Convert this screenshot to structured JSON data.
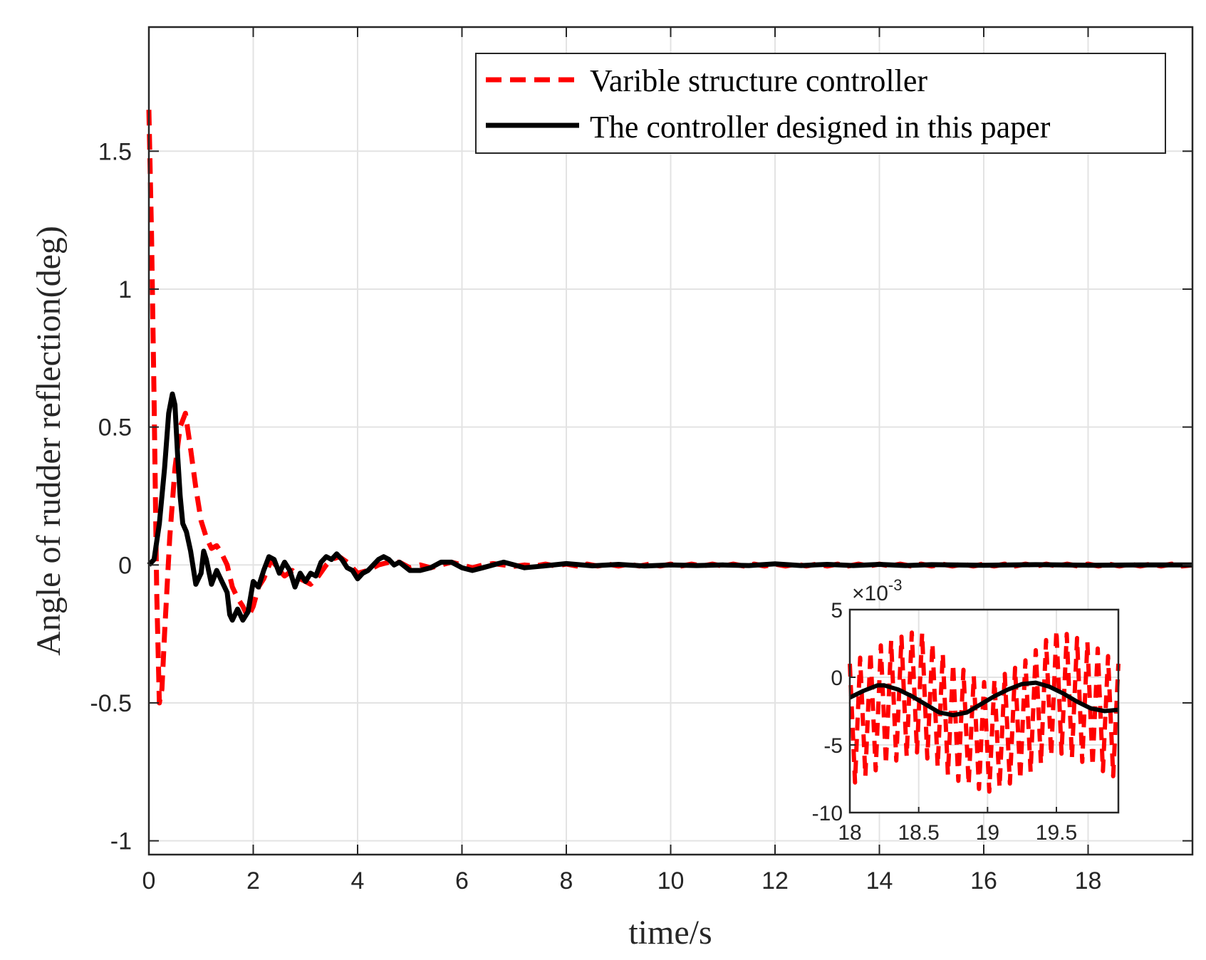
{
  "chart_data": [
    {
      "id": "main",
      "type": "line",
      "title": "",
      "xlabel": "time/s",
      "ylabel": "Angle of rudder reflection(deg)",
      "xlim": [
        0,
        20
      ],
      "ylim": [
        -1.05,
        1.95
      ],
      "x_ticks": [
        0,
        2,
        4,
        6,
        8,
        10,
        12,
        14,
        16,
        18
      ],
      "x_tick_labels": [
        "0",
        "2",
        "4",
        "6",
        "8",
        "10",
        "12",
        "14",
        "16",
        "18"
      ],
      "y_ticks": [
        -1,
        -0.5,
        0,
        0.5,
        1,
        1.5
      ],
      "y_tick_labels": [
        "-1",
        "-0.5",
        "0",
        "0.5",
        "1",
        "1.5"
      ],
      "grid": true,
      "legend_position": "top-right",
      "series": [
        {
          "name": "Varible structure controller",
          "color": "#ff0000",
          "style": "dashed",
          "points": [
            [
              0,
              1.65
            ],
            [
              0.05,
              1.2
            ],
            [
              0.1,
              0.6
            ],
            [
              0.15,
              -0.1
            ],
            [
              0.2,
              -0.5
            ],
            [
              0.25,
              -0.45
            ],
            [
              0.3,
              -0.25
            ],
            [
              0.4,
              0.1
            ],
            [
              0.5,
              0.35
            ],
            [
              0.6,
              0.5
            ],
            [
              0.7,
              0.55
            ],
            [
              0.8,
              0.42
            ],
            [
              0.9,
              0.28
            ],
            [
              1.0,
              0.16
            ],
            [
              1.1,
              0.1
            ],
            [
              1.2,
              0.06
            ],
            [
              1.3,
              0.07
            ],
            [
              1.4,
              0.04
            ],
            [
              1.5,
              0.0
            ],
            [
              1.6,
              -0.08
            ],
            [
              1.7,
              -0.12
            ],
            [
              1.8,
              -0.15
            ],
            [
              1.9,
              -0.19
            ],
            [
              2.0,
              -0.15
            ],
            [
              2.1,
              -0.08
            ],
            [
              2.2,
              -0.05
            ],
            [
              2.35,
              0.02
            ],
            [
              2.5,
              -0.02
            ],
            [
              2.6,
              -0.04
            ],
            [
              2.75,
              -0.02
            ],
            [
              2.9,
              -0.05
            ],
            [
              3.0,
              -0.06
            ],
            [
              3.1,
              -0.07
            ],
            [
              3.25,
              -0.04
            ],
            [
              3.4,
              0.0
            ],
            [
              3.5,
              0.02
            ],
            [
              3.65,
              0.03
            ],
            [
              3.8,
              0.01
            ],
            [
              4.0,
              -0.03
            ],
            [
              4.2,
              -0.02
            ],
            [
              4.4,
              0.0
            ],
            [
              4.6,
              0.01
            ],
            [
              4.8,
              0.01
            ],
            [
              5.0,
              -0.01
            ],
            [
              5.2,
              0.0
            ],
            [
              5.4,
              -0.01
            ],
            [
              5.6,
              0.0
            ],
            [
              5.8,
              0.01
            ],
            [
              6.0,
              0.0
            ],
            [
              6.2,
              -0.01
            ],
            [
              6.4,
              0.0
            ],
            [
              6.6,
              0.005
            ],
            [
              6.8,
              0.0
            ],
            [
              7.0,
              -0.005
            ],
            [
              7.2,
              0.0
            ],
            [
              7.4,
              -0.004
            ],
            [
              7.6,
              0.003
            ],
            [
              7.8,
              -0.004
            ],
            [
              8.0,
              0.003
            ],
            [
              8.2,
              -0.004
            ],
            [
              8.4,
              0.003
            ],
            [
              8.6,
              -0.004
            ],
            [
              8.8,
              0.003
            ],
            [
              9.0,
              -0.004
            ],
            [
              9.2,
              0.003
            ],
            [
              9.4,
              -0.004
            ],
            [
              9.6,
              0.003
            ],
            [
              9.8,
              -0.004
            ],
            [
              10.0,
              0.003
            ],
            [
              10.2,
              -0.004
            ],
            [
              10.4,
              0.003
            ],
            [
              10.6,
              -0.004
            ],
            [
              10.8,
              0.003
            ],
            [
              11.0,
              -0.004
            ],
            [
              11.2,
              0.003
            ],
            [
              11.4,
              -0.004
            ],
            [
              11.6,
              0.003
            ],
            [
              11.8,
              -0.004
            ],
            [
              12.0,
              0.003
            ],
            [
              12.2,
              -0.004
            ],
            [
              12.4,
              0.003
            ],
            [
              12.6,
              -0.004
            ],
            [
              12.8,
              0.003
            ],
            [
              13.0,
              -0.004
            ],
            [
              13.2,
              0.003
            ],
            [
              13.4,
              -0.004
            ],
            [
              13.6,
              0.003
            ],
            [
              13.8,
              -0.004
            ],
            [
              14.0,
              0.003
            ],
            [
              14.2,
              -0.004
            ],
            [
              14.4,
              0.003
            ],
            [
              14.6,
              -0.004
            ],
            [
              14.8,
              0.003
            ],
            [
              15.0,
              -0.004
            ],
            [
              15.2,
              0.003
            ],
            [
              15.4,
              -0.004
            ],
            [
              15.6,
              0.003
            ],
            [
              15.8,
              -0.004
            ],
            [
              16.0,
              0.003
            ],
            [
              16.2,
              -0.004
            ],
            [
              16.4,
              0.003
            ],
            [
              16.6,
              -0.004
            ],
            [
              16.8,
              0.003
            ],
            [
              17.0,
              -0.004
            ],
            [
              17.2,
              0.003
            ],
            [
              17.4,
              -0.004
            ],
            [
              17.6,
              0.003
            ],
            [
              17.8,
              -0.004
            ],
            [
              18.0,
              0.003
            ],
            [
              18.2,
              -0.004
            ],
            [
              18.4,
              0.003
            ],
            [
              18.6,
              -0.004
            ],
            [
              18.8,
              0.003
            ],
            [
              19.0,
              -0.004
            ],
            [
              19.2,
              0.003
            ],
            [
              19.4,
              -0.004
            ],
            [
              19.6,
              0.003
            ],
            [
              19.8,
              -0.004
            ],
            [
              20.0,
              0.0
            ]
          ]
        },
        {
          "name": "The controller designed in this paper",
          "color": "#000000",
          "style": "solid",
          "points": [
            [
              0,
              0
            ],
            [
              0.1,
              0.02
            ],
            [
              0.2,
              0.15
            ],
            [
              0.3,
              0.35
            ],
            [
              0.38,
              0.55
            ],
            [
              0.45,
              0.62
            ],
            [
              0.5,
              0.58
            ],
            [
              0.55,
              0.4
            ],
            [
              0.6,
              0.25
            ],
            [
              0.65,
              0.15
            ],
            [
              0.72,
              0.12
            ],
            [
              0.8,
              0.05
            ],
            [
              0.9,
              -0.07
            ],
            [
              1.0,
              -0.03
            ],
            [
              1.05,
              0.05
            ],
            [
              1.1,
              0.02
            ],
            [
              1.2,
              -0.07
            ],
            [
              1.3,
              -0.02
            ],
            [
              1.4,
              -0.06
            ],
            [
              1.5,
              -0.1
            ],
            [
              1.55,
              -0.18
            ],
            [
              1.6,
              -0.2
            ],
            [
              1.7,
              -0.16
            ],
            [
              1.8,
              -0.2
            ],
            [
              1.9,
              -0.17
            ],
            [
              2.0,
              -0.06
            ],
            [
              2.1,
              -0.08
            ],
            [
              2.2,
              -0.02
            ],
            [
              2.3,
              0.03
            ],
            [
              2.4,
              0.02
            ],
            [
              2.5,
              -0.03
            ],
            [
              2.6,
              0.01
            ],
            [
              2.7,
              -0.02
            ],
            [
              2.8,
              -0.08
            ],
            [
              2.9,
              -0.03
            ],
            [
              3.0,
              -0.06
            ],
            [
              3.1,
              -0.03
            ],
            [
              3.2,
              -0.04
            ],
            [
              3.3,
              0.01
            ],
            [
              3.4,
              0.03
            ],
            [
              3.5,
              0.02
            ],
            [
              3.6,
              0.04
            ],
            [
              3.7,
              0.02
            ],
            [
              3.8,
              -0.01
            ],
            [
              3.9,
              -0.02
            ],
            [
              4.0,
              -0.05
            ],
            [
              4.1,
              -0.03
            ],
            [
              4.2,
              -0.02
            ],
            [
              4.3,
              0.0
            ],
            [
              4.4,
              0.02
            ],
            [
              4.5,
              0.03
            ],
            [
              4.6,
              0.02
            ],
            [
              4.7,
              0.0
            ],
            [
              4.8,
              0.01
            ],
            [
              5.0,
              -0.02
            ],
            [
              5.2,
              -0.02
            ],
            [
              5.4,
              -0.01
            ],
            [
              5.6,
              0.01
            ],
            [
              5.8,
              0.01
            ],
            [
              6.0,
              -0.01
            ],
            [
              6.2,
              -0.02
            ],
            [
              6.4,
              -0.01
            ],
            [
              6.6,
              0.0
            ],
            [
              6.8,
              0.01
            ],
            [
              7.0,
              0.0
            ],
            [
              7.2,
              -0.01
            ],
            [
              7.5,
              -0.005
            ],
            [
              8.0,
              0.005
            ],
            [
              8.5,
              -0.003
            ],
            [
              9.0,
              0.002
            ],
            [
              9.5,
              -0.004
            ],
            [
              10.0,
              0.0
            ],
            [
              10.5,
              -0.002
            ],
            [
              11.0,
              0.0
            ],
            [
              11.5,
              -0.002
            ],
            [
              12.0,
              0.004
            ],
            [
              12.5,
              -0.002
            ],
            [
              13.0,
              0.002
            ],
            [
              13.5,
              -0.002
            ],
            [
              14.0,
              0.002
            ],
            [
              14.5,
              -0.002
            ],
            [
              15.0,
              0.001
            ],
            [
              16.0,
              -0.001
            ],
            [
              17.0,
              0.001
            ],
            [
              18.0,
              -0.001
            ],
            [
              19.0,
              0.0
            ],
            [
              20.0,
              0.0
            ]
          ]
        }
      ]
    },
    {
      "id": "inset",
      "type": "line",
      "title": "",
      "xlabel": "",
      "ylabel": "",
      "xlim": [
        18,
        19.95
      ],
      "ylim": [
        -10,
        5
      ],
      "y_exponent_label": "×10",
      "y_exponent_power": "-3",
      "x_ticks": [
        18,
        18.5,
        19,
        19.5
      ],
      "x_tick_labels": [
        "18",
        "18.5",
        "19",
        "19.5"
      ],
      "y_ticks": [
        -10,
        -5,
        0,
        5
      ],
      "y_tick_labels": [
        "-10",
        "-5",
        "0",
        "5"
      ],
      "grid": true,
      "series": [
        {
          "name": "Varible structure controller",
          "color": "#ff0000",
          "style": "dashed",
          "envelope_upper": [
            [
              18.0,
              1.0
            ],
            [
              18.25,
              2.5
            ],
            [
              18.5,
              3.5
            ],
            [
              18.75,
              1.0
            ],
            [
              19.0,
              -0.5
            ],
            [
              19.25,
              1.0
            ],
            [
              19.5,
              3.5
            ],
            [
              19.75,
              2.5
            ],
            [
              19.95,
              1.0
            ]
          ],
          "envelope_lower": [
            [
              18.0,
              -8.0
            ],
            [
              18.25,
              -6.5
            ],
            [
              18.5,
              -5.5
            ],
            [
              18.75,
              -7.5
            ],
            [
              19.0,
              -8.5
            ],
            [
              19.25,
              -7.5
            ],
            [
              19.5,
              -5.5
            ],
            [
              19.75,
              -6.5
            ],
            [
              19.95,
              -7.5
            ]
          ],
          "cycles": 26
        },
        {
          "name": "The controller designed in this paper",
          "color": "#000000",
          "style": "solid",
          "points": [
            [
              18.0,
              -1.5
            ],
            [
              18.1,
              -1.0
            ],
            [
              18.2,
              -0.6
            ],
            [
              18.25,
              -0.6
            ],
            [
              18.35,
              -0.9
            ],
            [
              18.45,
              -1.4
            ],
            [
              18.55,
              -2.0
            ],
            [
              18.65,
              -2.6
            ],
            [
              18.75,
              -2.8
            ],
            [
              18.85,
              -2.6
            ],
            [
              18.95,
              -2.0
            ],
            [
              19.05,
              -1.4
            ],
            [
              19.15,
              -0.9
            ],
            [
              19.25,
              -0.5
            ],
            [
              19.35,
              -0.4
            ],
            [
              19.45,
              -0.7
            ],
            [
              19.55,
              -1.2
            ],
            [
              19.65,
              -1.8
            ],
            [
              19.75,
              -2.3
            ],
            [
              19.85,
              -2.5
            ],
            [
              19.95,
              -2.4
            ]
          ]
        }
      ]
    }
  ]
}
